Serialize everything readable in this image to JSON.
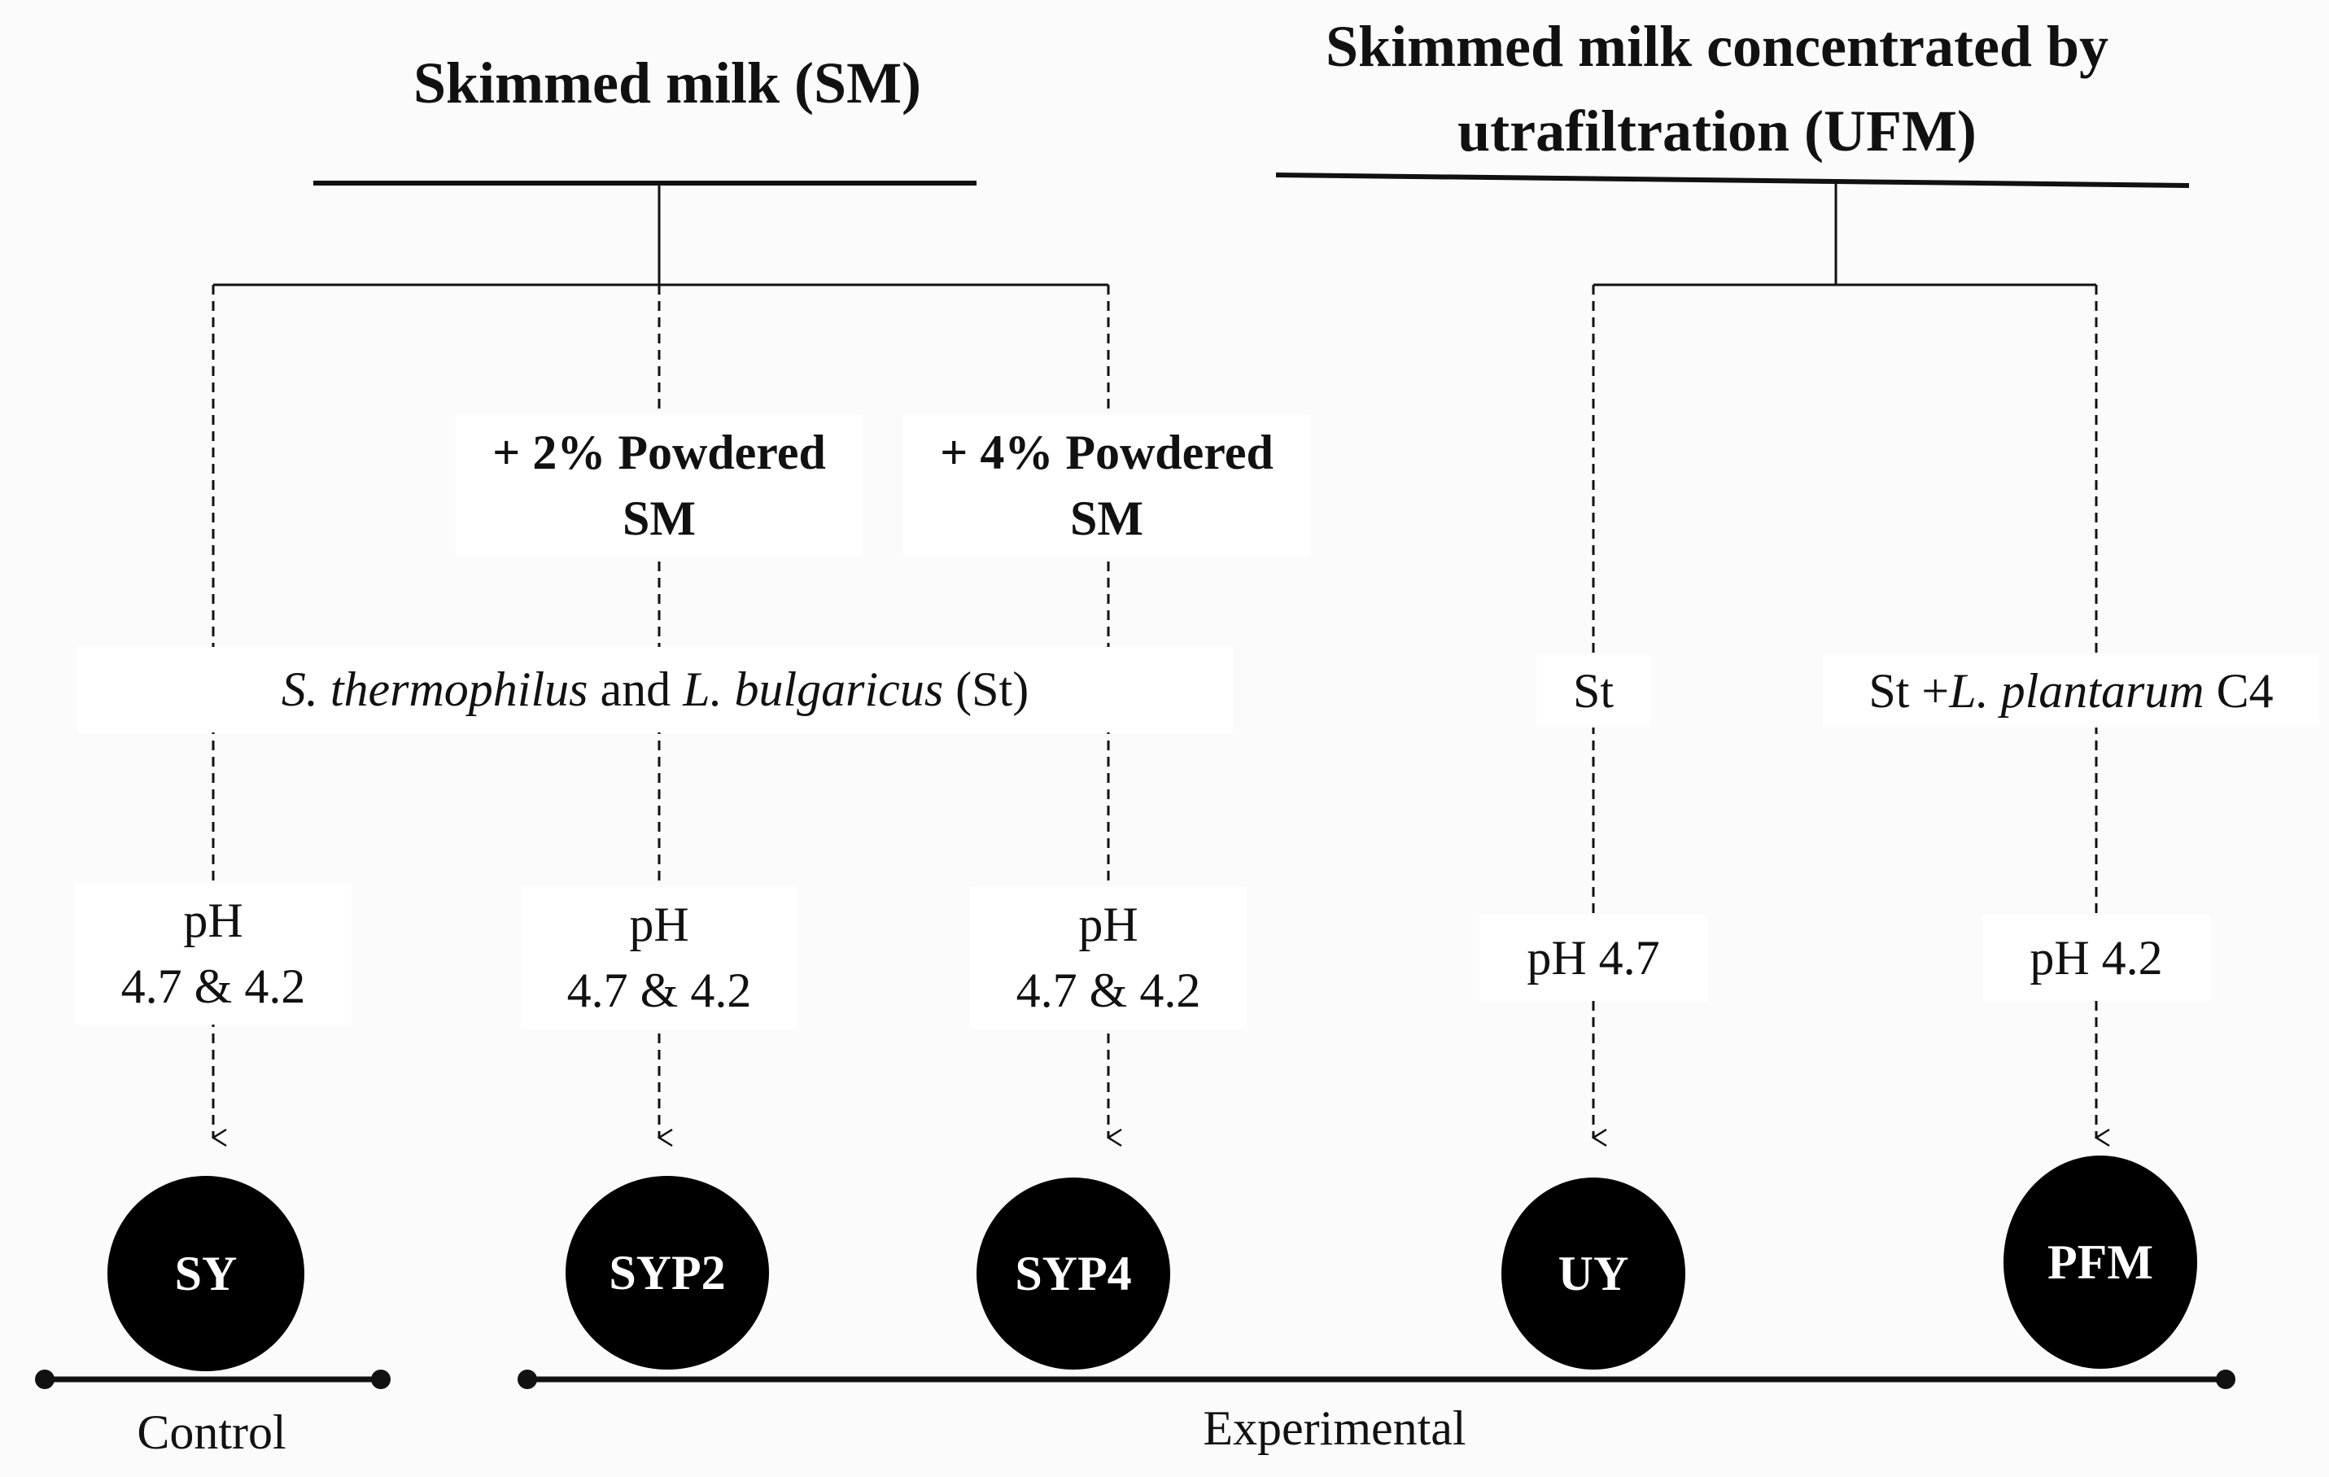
{
  "titles": {
    "sm": "Skimmed milk (SM)",
    "ufm_line1": "Skimmed milk concentrated by",
    "ufm_line2": "utrafiltration (UFM)"
  },
  "additions": {
    "p2_line1": "+ 2%  Powdered",
    "p2_line2": "SM",
    "p4_line1": "+ 4%  Powdered",
    "p4_line2": "SM"
  },
  "starters": {
    "sm_part1": "S. thermophilus",
    "sm_part2": " and ",
    "sm_part3": "L. bulgaricus",
    "sm_part4": " (St)",
    "uy": "St",
    "pfm_part1": "St +",
    "pfm_part2": "L. plantarum",
    "pfm_part3": " C4"
  },
  "ph": {
    "sy_line1": "pH",
    "sy_line2": "4.7 & 4.2",
    "syp2_line1": "pH",
    "syp2_line2": "4.7 & 4.2",
    "syp4_line1": "pH",
    "syp4_line2": "4.7 & 4.2",
    "uy": "pH 4.7",
    "pfm": "pH 4.2"
  },
  "samples": {
    "sy": "SY",
    "syp2": "SYP2",
    "syp4": "SYP4",
    "uy": "UY",
    "pfm": "PFM"
  },
  "groups": {
    "control": "Control",
    "experimental": "Experimental"
  },
  "colors": {
    "background": "#fbfbfb",
    "node": "#000000",
    "node_text": "#ffffff",
    "line": "#111111"
  }
}
